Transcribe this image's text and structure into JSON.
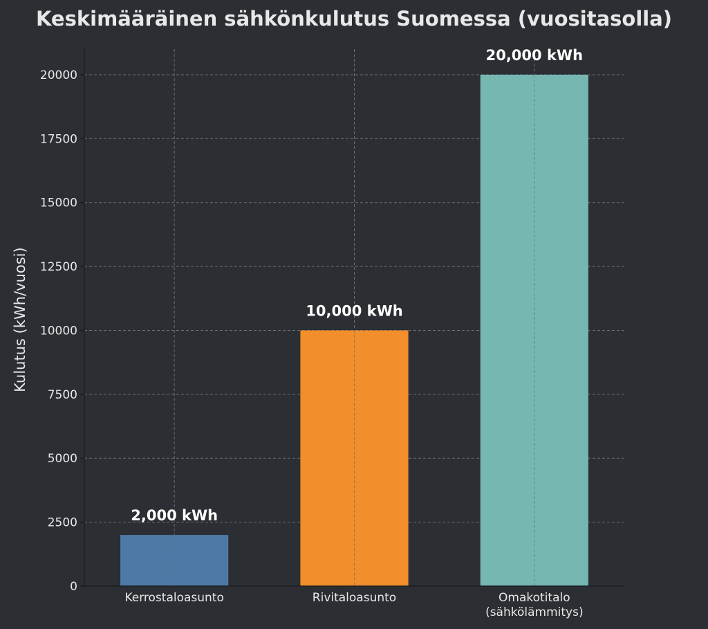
{
  "chart_data": {
    "type": "bar",
    "title": "Keskimääräinen sähkönkulutus Suomessa (vuositasolla)",
    "xlabel": "",
    "ylabel": "Kulutus (kWh/vuosi)",
    "categories": [
      [
        "Kerrostaloasunto"
      ],
      [
        "Rivitaloasunto"
      ],
      [
        "Omakotitalo",
        "(sähkölämmitys)"
      ]
    ],
    "values": [
      2000,
      10000,
      20000
    ],
    "data_labels": [
      "2,000 kWh",
      "10,000 kWh",
      "20,000 kWh"
    ],
    "colors": [
      "#4e79a7",
      "#f28e2b",
      "#76b7b2"
    ],
    "ylim": [
      0,
      21000
    ],
    "yticks": [
      0,
      2500,
      5000,
      7500,
      10000,
      12500,
      15000,
      17500,
      20000
    ],
    "grid": true,
    "legend": "none"
  },
  "colors": {
    "background": "#2b2e32",
    "text": "#e8e8e8",
    "grid": "#6b6f74",
    "axis": "#1c1e21"
  }
}
